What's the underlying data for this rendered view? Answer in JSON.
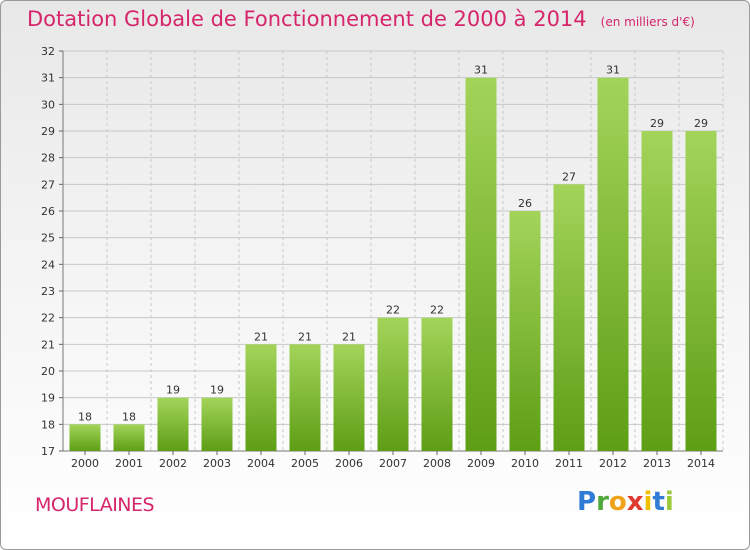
{
  "header": {
    "title": "Dotation Globale de Fonctionnement de 2000 à 2014",
    "unit": "(en milliers d'€)"
  },
  "place": "MOUFLAINES",
  "logo": {
    "letters": [
      "P",
      "r",
      "o",
      "x",
      "i",
      "t",
      "i"
    ],
    "colors": [
      "#2f7bd6",
      "#4fa83a",
      "#f0a21a",
      "#e03a2f",
      "#f0c000",
      "#2f7bd6",
      "#9bc93a"
    ]
  },
  "colors": {
    "bar_light": "#a3d45a",
    "bar_dark": "#5e9e15",
    "grid": "#c8c8c8",
    "title": "#d6256a"
  },
  "chart_data": {
    "type": "bar",
    "title": "Dotation Globale de Fonctionnement de 2000 à 2014",
    "subtitle": "(en milliers d'€)",
    "categories": [
      "2000",
      "2001",
      "2002",
      "2003",
      "2004",
      "2005",
      "2006",
      "2007",
      "2008",
      "2009",
      "2010",
      "2011",
      "2012",
      "2013",
      "2014"
    ],
    "values": [
      18,
      18,
      19,
      19,
      21,
      21,
      21,
      22,
      22,
      31,
      26,
      27,
      31,
      29,
      29
    ],
    "ylim": [
      17,
      32
    ],
    "yticks": [
      17,
      18,
      19,
      20,
      21,
      22,
      23,
      24,
      25,
      26,
      27,
      28,
      29,
      30,
      31,
      32
    ],
    "grid": true,
    "data_labels": true
  }
}
